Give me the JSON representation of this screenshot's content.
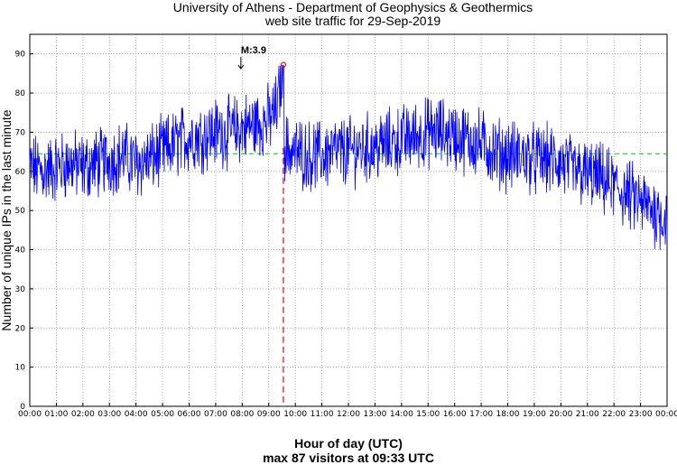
{
  "chart_data": {
    "type": "line",
    "title": "University of Athens - Department of Geophysics & Geothermics",
    "subtitle": "web site traffic for 29-Sep-2019",
    "xlabel": "Hour of day (UTC)",
    "xlabel2": "max 87 visitors at 09:33 UTC",
    "ylabel": "Number of unique IPs in the last minute",
    "x_ticks": [
      "00:00",
      "01:00",
      "02:00",
      "03:00",
      "04:00",
      "05:00",
      "06:00",
      "07:00",
      "08:00",
      "09:00",
      "10:00",
      "11:00",
      "12:00",
      "13:00",
      "14:00",
      "15:00",
      "16:00",
      "17:00",
      "18:00",
      "19:00",
      "20:00",
      "21:00",
      "22:00",
      "23:00",
      "00:00"
    ],
    "y_ticks": [
      0,
      10,
      20,
      30,
      40,
      50,
      60,
      70,
      80,
      90
    ],
    "xlim_hours": [
      0,
      24
    ],
    "ylim": [
      0,
      95
    ],
    "grid": true,
    "line_color": "#0000ff",
    "marker_color": "#ff0000",
    "mean_line_color": "#00cc00",
    "vline_color": "#ff0000",
    "mean_value": 64.5,
    "max": {
      "value": 87,
      "time": "09:33",
      "hour": 9.55
    },
    "annotation": {
      "label": "M:3.9",
      "hour": 7.95,
      "value": 86
    },
    "series": [
      {
        "x_hours": [
          0,
          0.5,
          1,
          1.5,
          2,
          2.5,
          3,
          3.5,
          4,
          4.5,
          5,
          5.5,
          6,
          6.5,
          7,
          7.5,
          8,
          8.5,
          9,
          9.3,
          9.55,
          9.6,
          10,
          10.5,
          11,
          11.5,
          12,
          12.5,
          13,
          13.5,
          14,
          14.5,
          15,
          15.5,
          16,
          16.5,
          17,
          17.5,
          18,
          18.5,
          19,
          19.5,
          20,
          20.5,
          21,
          21.5,
          22,
          22.5,
          23,
          23.5,
          24
        ],
        "values": [
          61,
          60,
          61,
          62,
          61,
          62,
          63,
          64,
          62,
          63,
          65,
          67,
          69,
          69,
          70,
          70,
          71,
          72,
          73,
          76,
          87,
          66,
          65,
          64,
          64,
          65,
          65,
          66,
          66,
          67,
          68,
          69,
          70,
          70,
          69,
          68,
          67,
          65,
          64,
          64,
          63,
          63,
          62,
          60,
          59,
          58,
          56,
          54,
          52,
          50,
          48
        ]
      }
    ]
  }
}
